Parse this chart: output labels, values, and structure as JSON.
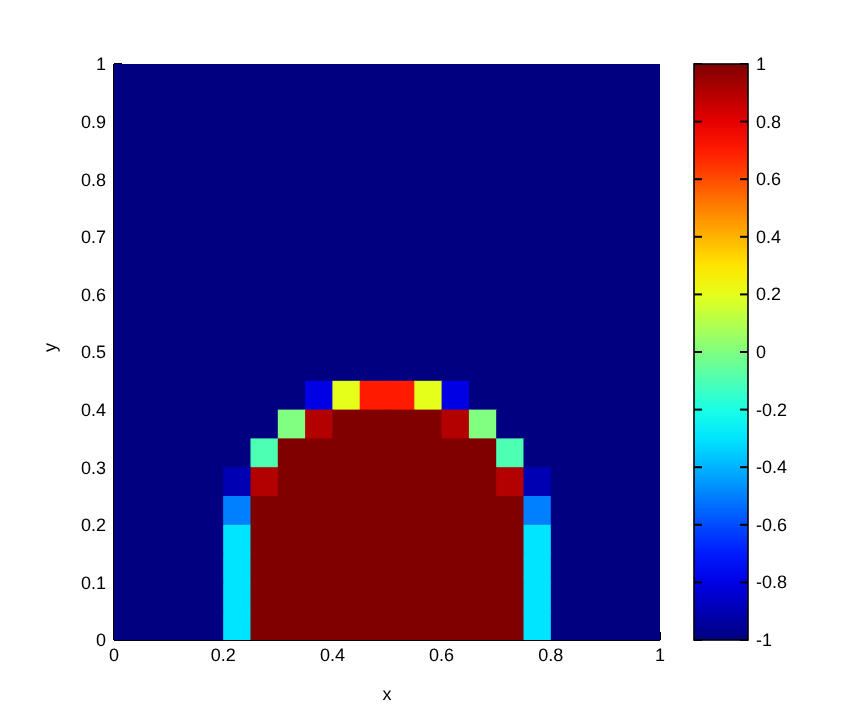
{
  "chart_data": {
    "type": "heatmap",
    "xlabel": "x",
    "ylabel": "y",
    "x": [
      0.025,
      0.075,
      0.125,
      0.175,
      0.225,
      0.275,
      0.325,
      0.375,
      0.425,
      0.475,
      0.525,
      0.575,
      0.625,
      0.675,
      0.725,
      0.775,
      0.825,
      0.875,
      0.925,
      0.975
    ],
    "y": [
      0.975,
      0.925,
      0.875,
      0.825,
      0.775,
      0.725,
      0.675,
      0.625,
      0.575,
      0.525,
      0.475,
      0.425,
      0.375,
      0.325,
      0.275,
      0.225,
      0.175,
      0.125,
      0.075,
      0.025
    ],
    "xlim": [
      0,
      1
    ],
    "xticks": [
      0,
      0.2,
      0.4,
      0.6,
      0.8,
      1
    ],
    "ylim": [
      0,
      1
    ],
    "yticks": [
      0,
      0.1,
      0.2,
      0.3,
      0.4,
      0.5,
      0.6,
      0.7,
      0.8,
      0.9,
      1
    ],
    "clim": [
      -1,
      1
    ],
    "cticks": [
      -1,
      -0.8,
      -0.6,
      -0.4,
      -0.2,
      0,
      0.2,
      0.4,
      0.6,
      0.8,
      1
    ],
    "cells": [
      [
        -1,
        -1,
        -1,
        -1,
        -1,
        -1,
        -1,
        -1,
        -1,
        -1,
        -1,
        -1,
        -1,
        -1,
        -1,
        -1,
        -1,
        -1,
        -1,
        -1
      ],
      [
        -1,
        -1,
        -1,
        -1,
        -1,
        -1,
        -1,
        -1,
        -1,
        -1,
        -1,
        -1,
        -1,
        -1,
        -1,
        -1,
        -1,
        -1,
        -1,
        -1
      ],
      [
        -1,
        -1,
        -1,
        -1,
        -1,
        -1,
        -1,
        -1,
        -1,
        -1,
        -1,
        -1,
        -1,
        -1,
        -1,
        -1,
        -1,
        -1,
        -1,
        -1
      ],
      [
        -1,
        -1,
        -1,
        -1,
        -1,
        -1,
        -1,
        -1,
        -1,
        -1,
        -1,
        -1,
        -1,
        -1,
        -1,
        -1,
        -1,
        -1,
        -1,
        -1
      ],
      [
        -1,
        -1,
        -1,
        -1,
        -1,
        -1,
        -1,
        -1,
        -1,
        -1,
        -1,
        -1,
        -1,
        -1,
        -1,
        -1,
        -1,
        -1,
        -1,
        -1
      ],
      [
        -1,
        -1,
        -1,
        -1,
        -1,
        -1,
        -1,
        -1,
        -1,
        -1,
        -1,
        -1,
        -1,
        -1,
        -1,
        -1,
        -1,
        -1,
        -1,
        -1
      ],
      [
        -1,
        -1,
        -1,
        -1,
        -1,
        -1,
        -1,
        -1,
        -1,
        -1,
        -1,
        -1,
        -1,
        -1,
        -1,
        -1,
        -1,
        -1,
        -1,
        -1
      ],
      [
        -1,
        -1,
        -1,
        -1,
        -1,
        -1,
        -1,
        -1,
        -1,
        -1,
        -1,
        -1,
        -1,
        -1,
        -1,
        -1,
        -1,
        -1,
        -1,
        -1
      ],
      [
        -1,
        -1,
        -1,
        -1,
        -1,
        -1,
        -1,
        -1,
        -1,
        -1,
        -1,
        -1,
        -1,
        -1,
        -1,
        -1,
        -1,
        -1,
        -1,
        -1
      ],
      [
        -1,
        -1,
        -1,
        -1,
        -1,
        -1,
        -1,
        -1,
        -1,
        -1,
        -1,
        -1,
        -1,
        -1,
        -1,
        -1,
        -1,
        -1,
        -1,
        -1
      ],
      [
        -1,
        -1,
        -1,
        -1,
        -1,
        -1,
        -1,
        -1,
        -1,
        -1,
        -1,
        -1,
        -1,
        -1,
        -1,
        -1,
        -1,
        -1,
        -1,
        -1
      ],
      [
        -1,
        -1,
        -1,
        -1,
        -1,
        -1,
        -1,
        -0.8,
        0.2,
        0.7,
        0.7,
        0.2,
        -0.8,
        -1,
        -1,
        -1,
        -1,
        -1,
        -1,
        -1
      ],
      [
        -1,
        -1,
        -1,
        -1,
        -1,
        -1,
        0,
        0.9,
        1,
        1,
        1,
        1,
        0.9,
        0,
        -1,
        -1,
        -1,
        -1,
        -1,
        -1
      ],
      [
        -1,
        -1,
        -1,
        -1,
        -1,
        -0.1,
        1,
        1,
        1,
        1,
        1,
        1,
        1,
        1,
        -0.1,
        -1,
        -1,
        -1,
        -1,
        -1
      ],
      [
        -1,
        -1,
        -1,
        -1,
        -0.9,
        0.9,
        1,
        1,
        1,
        1,
        1,
        1,
        1,
        1,
        0.9,
        -0.9,
        -1,
        -1,
        -1,
        -1
      ],
      [
        -1,
        -1,
        -1,
        -1,
        -0.5,
        1,
        1,
        1,
        1,
        1,
        1,
        1,
        1,
        1,
        1,
        -0.5,
        -1,
        -1,
        -1,
        -1
      ],
      [
        -1,
        -1,
        -1,
        -1,
        -0.3,
        1,
        1,
        1,
        1,
        1,
        1,
        1,
        1,
        1,
        1,
        -0.3,
        -1,
        -1,
        -1,
        -1
      ],
      [
        -1,
        -1,
        -1,
        -1,
        -0.3,
        1,
        1,
        1,
        1,
        1,
        1,
        1,
        1,
        1,
        1,
        -0.3,
        -1,
        -1,
        -1,
        -1
      ],
      [
        -1,
        -1,
        -1,
        -1,
        -0.3,
        1,
        1,
        1,
        1,
        1,
        1,
        1,
        1,
        1,
        1,
        -0.3,
        -1,
        -1,
        -1,
        -1
      ],
      [
        -1,
        -1,
        -1,
        -1,
        -0.3,
        1,
        1,
        1,
        1,
        1,
        1,
        1,
        1,
        1,
        1,
        -0.3,
        -1,
        -1,
        -1,
        -1
      ]
    ]
  }
}
